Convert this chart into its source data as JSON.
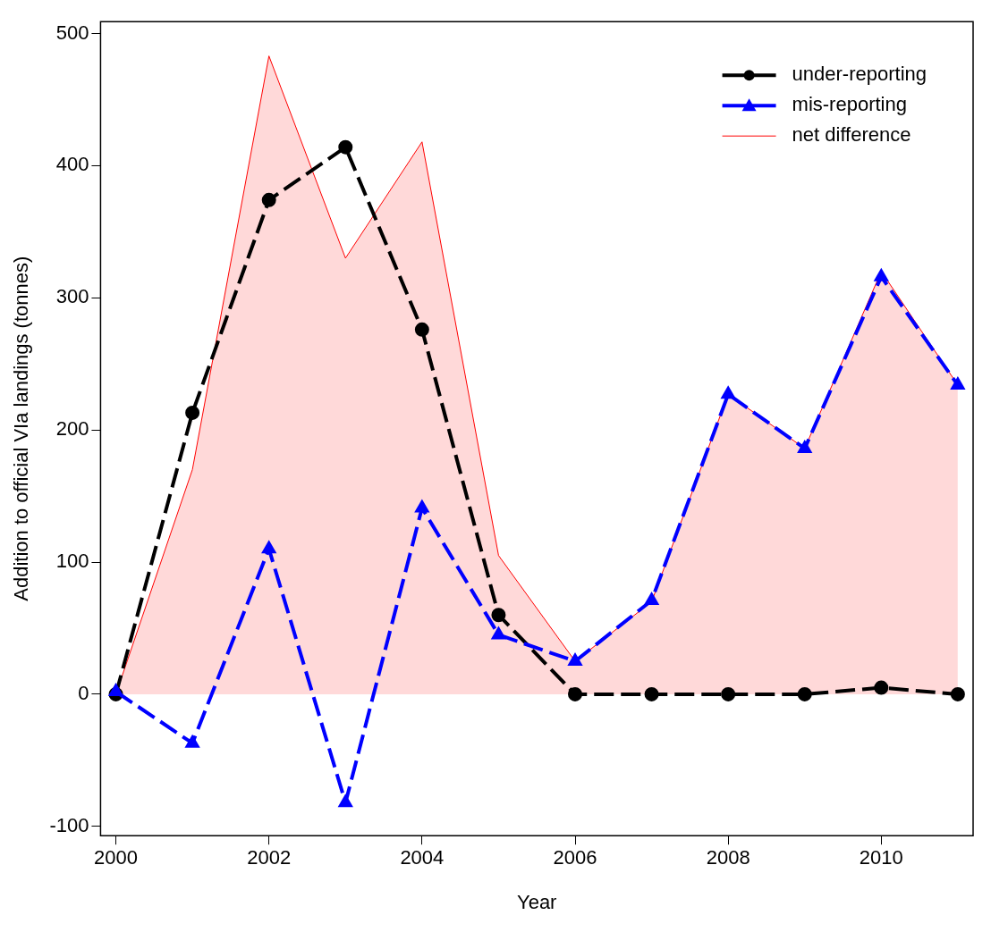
{
  "chart_data": {
    "type": "line",
    "xlabel": "Year",
    "ylabel": "Addition to official VIa landings (tonnes)",
    "x": [
      2000,
      2001,
      2002,
      2003,
      2004,
      2005,
      2006,
      2007,
      2008,
      2009,
      2010,
      2011
    ],
    "xlim": [
      1999.8,
      2011.2
    ],
    "xticks": [
      2000,
      2002,
      2004,
      2006,
      2008,
      2010
    ],
    "ylim": [
      -107,
      509
    ],
    "yticks": [
      -100,
      0,
      100,
      200,
      300,
      400,
      500
    ],
    "grid": false,
    "legend": "top right",
    "series": [
      {
        "name": "net difference",
        "type": "area",
        "color": "#ff0000",
        "values": [
          0,
          170,
          483,
          330,
          418,
          105,
          25,
          70,
          227,
          186,
          320,
          234
        ]
      },
      {
        "name": "under-reporting",
        "type": "line",
        "color": "#000000",
        "marker": "circle",
        "line_style": "dashed",
        "values": [
          0,
          213,
          374,
          414,
          276,
          60,
          0,
          0,
          0,
          0,
          5,
          0
        ]
      },
      {
        "name": "mis-reporting",
        "type": "line",
        "color": "#0000ff",
        "marker": "triangle",
        "line_style": "dashed",
        "values": [
          2,
          -37,
          110,
          -82,
          141,
          45,
          25,
          71,
          227,
          186,
          316,
          234
        ]
      }
    ]
  }
}
